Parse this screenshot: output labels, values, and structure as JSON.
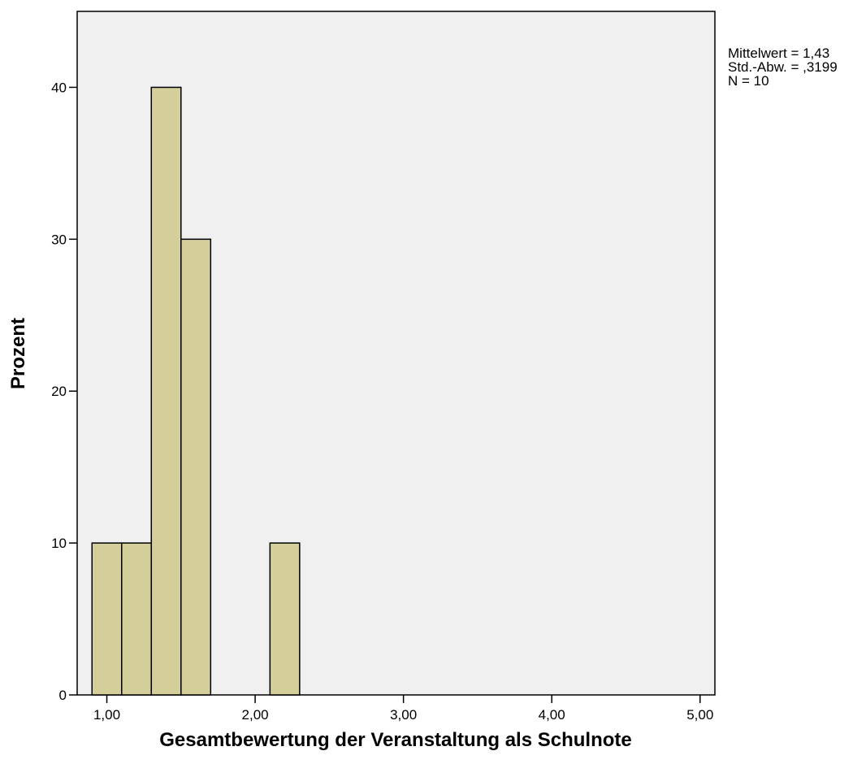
{
  "chart_data": {
    "type": "bar",
    "xlabel": "Gesamtbewertung der Veranstaltung als Schulnote",
    "ylabel": "Prozent",
    "xlim": [
      0.8,
      5.1
    ],
    "ylim": [
      0,
      45
    ],
    "x_ticks": [
      1,
      2,
      3,
      4,
      5
    ],
    "x_tick_labels": [
      "1,00",
      "2,00",
      "3,00",
      "4,00",
      "5,00"
    ],
    "y_ticks": [
      0,
      10,
      20,
      30,
      40
    ],
    "y_tick_labels": [
      "0",
      "10",
      "20",
      "30",
      "40"
    ],
    "bins": [
      {
        "start": 0.9,
        "end": 1.1,
        "value": 10
      },
      {
        "start": 1.1,
        "end": 1.3,
        "value": 10
      },
      {
        "start": 1.3,
        "end": 1.5,
        "value": 40
      },
      {
        "start": 1.5,
        "end": 1.7,
        "value": 30
      },
      {
        "start": 2.1,
        "end": 2.3,
        "value": 10
      }
    ],
    "colors": {
      "bar_fill": "#d3ce9a",
      "plot_background": "#f0f0f0"
    }
  },
  "stats": {
    "mean": "Mittelwert = 1,43",
    "std": "Std.-Abw. = ,3199",
    "n": "N = 10"
  }
}
